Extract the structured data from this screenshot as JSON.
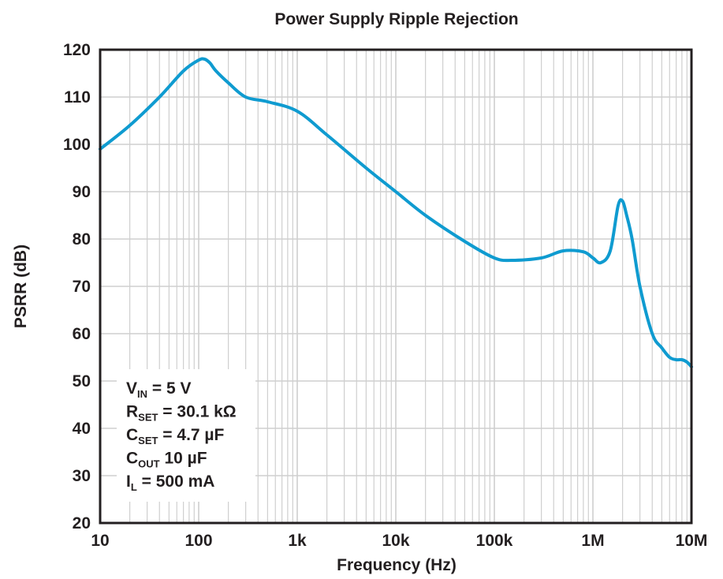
{
  "chart_data": {
    "type": "line",
    "title": "Power Supply Ripple Rejection",
    "xlabel": "Frequency (Hz)",
    "ylabel": "PSRR (dB)",
    "xscale": "log",
    "xlim": [
      10,
      10000000
    ],
    "ylim": [
      20,
      120
    ],
    "grid": true,
    "x_ticks": [
      10,
      100,
      1000,
      10000,
      100000,
      1000000,
      10000000
    ],
    "x_tick_labels": [
      "10",
      "100",
      "1k",
      "10k",
      "100k",
      "1M",
      "10M"
    ],
    "y_ticks": [
      20,
      30,
      40,
      50,
      60,
      70,
      80,
      90,
      100,
      110,
      120
    ],
    "y_tick_labels": [
      "20",
      "30",
      "40",
      "50",
      "60",
      "70",
      "80",
      "90",
      "100",
      "110",
      "120"
    ],
    "line_color": "#0f9bd0",
    "series": [
      {
        "x": [
          10,
          20,
          40,
          70,
          100,
          115,
          130,
          150,
          200,
          300,
          500,
          1000,
          2000,
          5000,
          10000,
          20000,
          50000,
          100000,
          150000,
          300000,
          500000,
          800000,
          1000000,
          1200000,
          1500000,
          1800000,
          2000000,
          2200000,
          2500000,
          3000000,
          4000000,
          5000000,
          6000000,
          7000000,
          8000000,
          9000000,
          10000000
        ],
        "y": [
          99,
          104,
          110,
          115.5,
          117.8,
          118,
          117.2,
          115.5,
          113,
          110,
          109,
          107,
          102,
          95,
          90,
          85,
          79.5,
          76,
          75.5,
          76,
          77.5,
          77.3,
          76,
          75,
          77.5,
          87,
          88,
          85,
          80,
          70,
          60,
          57,
          55,
          54.5,
          54.5,
          54,
          53
        ]
      }
    ],
    "annotations": {
      "lines": [
        {
          "main": "V",
          "sub": "IN",
          "rest": " = 5 V"
        },
        {
          "main": "R",
          "sub": "SET",
          "rest": " = 30.1 kΩ"
        },
        {
          "main": "C",
          "sub": "SET",
          "rest": " = 4.7 µF"
        },
        {
          "main": "C",
          "sub": "OUT",
          "rest": " 10 µF"
        },
        {
          "main": "I",
          "sub": "L",
          "rest": " = 500 mA"
        }
      ]
    }
  }
}
